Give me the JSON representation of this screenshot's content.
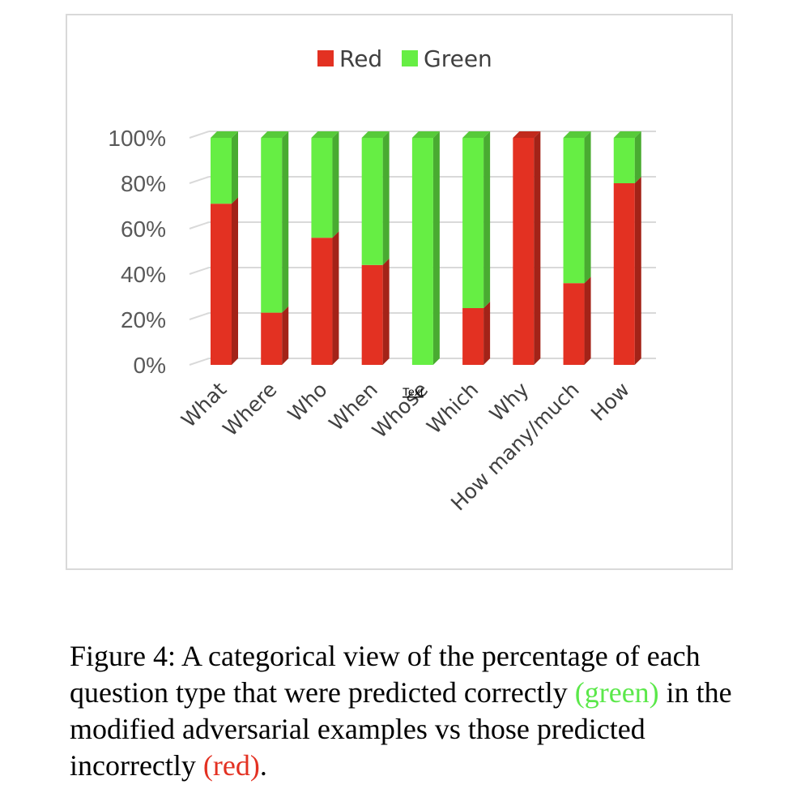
{
  "chart_data": {
    "type": "bar",
    "stacked": true,
    "three_d": true,
    "categories": [
      "What",
      "Where",
      "Who",
      "When",
      "Whose",
      "Which",
      "Why",
      "How many/much",
      "How"
    ],
    "series": [
      {
        "name": "Red",
        "color": "#e33122",
        "values": [
          71,
          23,
          56,
          44,
          0,
          25,
          100,
          36,
          80
        ]
      },
      {
        "name": "Green",
        "color": "#66ee44",
        "values": [
          29,
          77,
          44,
          56,
          100,
          75,
          0,
          64,
          20
        ]
      }
    ],
    "ylim": [
      0,
      100
    ],
    "yticks": [
      "0%",
      "20%",
      "40%",
      "60%",
      "80%",
      "100%"
    ],
    "grid": true,
    "legend": "top",
    "annotation": "Text"
  },
  "caption": {
    "prefix": "Figure 4: A categorical view of the percentage of each question type that were predicted correctly ",
    "green_word": "(green)",
    "middle": " in the modified adversarial examples vs those predicted incorrectly ",
    "red_word": "(red)",
    "suffix": "."
  }
}
